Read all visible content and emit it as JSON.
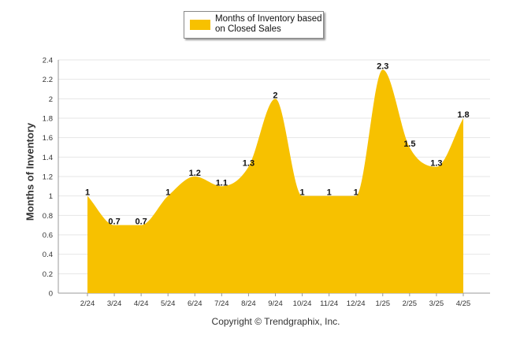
{
  "chart_data": {
    "type": "area",
    "categories": [
      "2/24",
      "3/24",
      "4/24",
      "5/24",
      "6/24",
      "7/24",
      "8/24",
      "9/24",
      "10/24",
      "11/24",
      "12/24",
      "1/25",
      "2/25",
      "3/25",
      "4/25"
    ],
    "series": [
      {
        "name": "Months of Inventory based on Closed Sales",
        "values": [
          1,
          0.7,
          0.7,
          1,
          1.2,
          1.1,
          1.3,
          2,
          1,
          1,
          1,
          2.3,
          1.5,
          1.3,
          1.8
        ],
        "labels": [
          "1",
          "0.7",
          "0.7",
          "1",
          "1.2",
          "1.1",
          "1.3",
          "2",
          "1",
          "1",
          "1",
          "2.3",
          "1.5",
          "1.3",
          "1.8"
        ]
      }
    ],
    "ylabel": "Months of Inventory",
    "xlabel": "",
    "ylim": [
      0,
      2.4
    ],
    "yticks": [
      0,
      0.2,
      0.4,
      0.6,
      0.8,
      1,
      1.2,
      1.4,
      1.6,
      1.8,
      2,
      2.2,
      2.4
    ],
    "yticklabels": [
      "0",
      "0.2",
      "0.4",
      "0.6",
      "0.8",
      "1",
      "1.2",
      "1.4",
      "1.6",
      "1.8",
      "2",
      "2.2",
      "2.4"
    ],
    "grid": true,
    "legend_position": "top-center",
    "color": "#F7C100"
  },
  "copyright": "Copyright © Trendgraphix, Inc."
}
